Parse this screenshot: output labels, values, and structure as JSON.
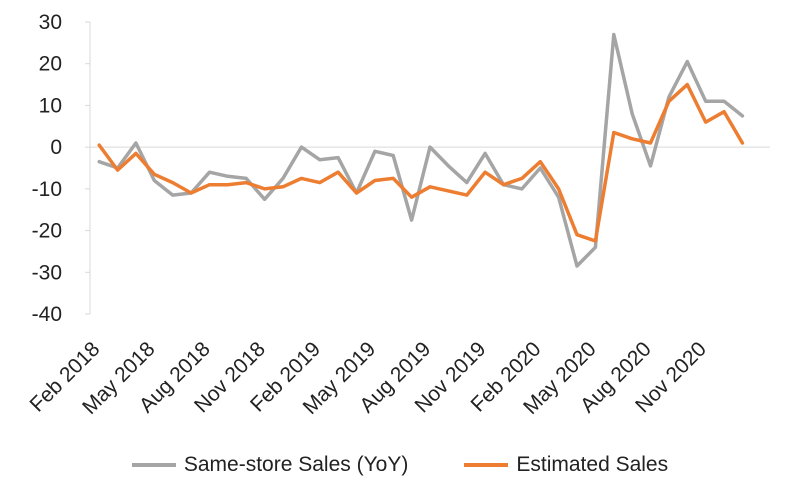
{
  "chart_data": {
    "type": "line",
    "title": "",
    "xlabel": "",
    "ylabel": "",
    "ylim": [
      -40,
      30
    ],
    "yticks": [
      "30",
      "20",
      "10",
      "0",
      "-10",
      "-20",
      "-30",
      "-40"
    ],
    "grid": false,
    "legend_position": "bottom",
    "x": [
      "Feb 2018",
      "Mar 2018",
      "Apr 2018",
      "May 2018",
      "Jun 2018",
      "Jul 2018",
      "Aug 2018",
      "Sep 2018",
      "Oct 2018",
      "Nov 2018",
      "Dec 2018",
      "Jan 2019",
      "Feb 2019",
      "Mar 2019",
      "Apr 2019",
      "May 2019",
      "Jun 2019",
      "Jul 2019",
      "Aug 2019",
      "Sep 2019",
      "Oct 2019",
      "Nov 2019",
      "Dec 2019",
      "Jan 2020",
      "Feb 2020",
      "Mar 2020",
      "Apr 2020",
      "May 2020",
      "Jun 2020",
      "Jul 2020",
      "Aug 2020",
      "Sep 2020",
      "Oct 2020",
      "Nov 2020",
      "Dec 2020",
      "Jan 2021",
      "Feb 2021"
    ],
    "xtick_labels": [
      "Feb 2018",
      "May 2018",
      "Aug 2018",
      "Nov 2018",
      "Feb 2019",
      "May 2019",
      "Aug 2019",
      "Nov 2019",
      "Feb 2020",
      "May 2020",
      "Aug 2020",
      "Nov 2020"
    ],
    "series": [
      {
        "name": "Same-store Sales (YoY)",
        "color": "#a5a5a5",
        "values": [
          -3.5,
          -5,
          1,
          -8,
          -11.5,
          -11,
          -6,
          -7,
          -7.5,
          -12.5,
          -7.5,
          0,
          -3,
          -2.5,
          -11,
          -1,
          -2,
          -17.5,
          0,
          -4.5,
          -8.5,
          -1.5,
          -9,
          -10,
          -5,
          -12,
          -28.5,
          -24,
          27,
          8,
          -4.5,
          12,
          20.5,
          11,
          11,
          7.5,
          null
        ]
      },
      {
        "name": "Estimated Sales",
        "color": "#ed7d31",
        "values": [
          0.5,
          -5.5,
          -1.5,
          -6.5,
          -8.5,
          -11,
          -9,
          -9,
          -8.5,
          -10,
          -9.5,
          -7.5,
          -8.5,
          -6,
          -11,
          -8,
          -7.5,
          -12,
          -9.5,
          -10.5,
          -11.5,
          -6,
          -9,
          -7.5,
          -3.5,
          -10,
          -21,
          -22.5,
          3.5,
          2,
          1,
          11,
          15,
          6,
          8.5,
          1,
          null
        ]
      }
    ]
  }
}
